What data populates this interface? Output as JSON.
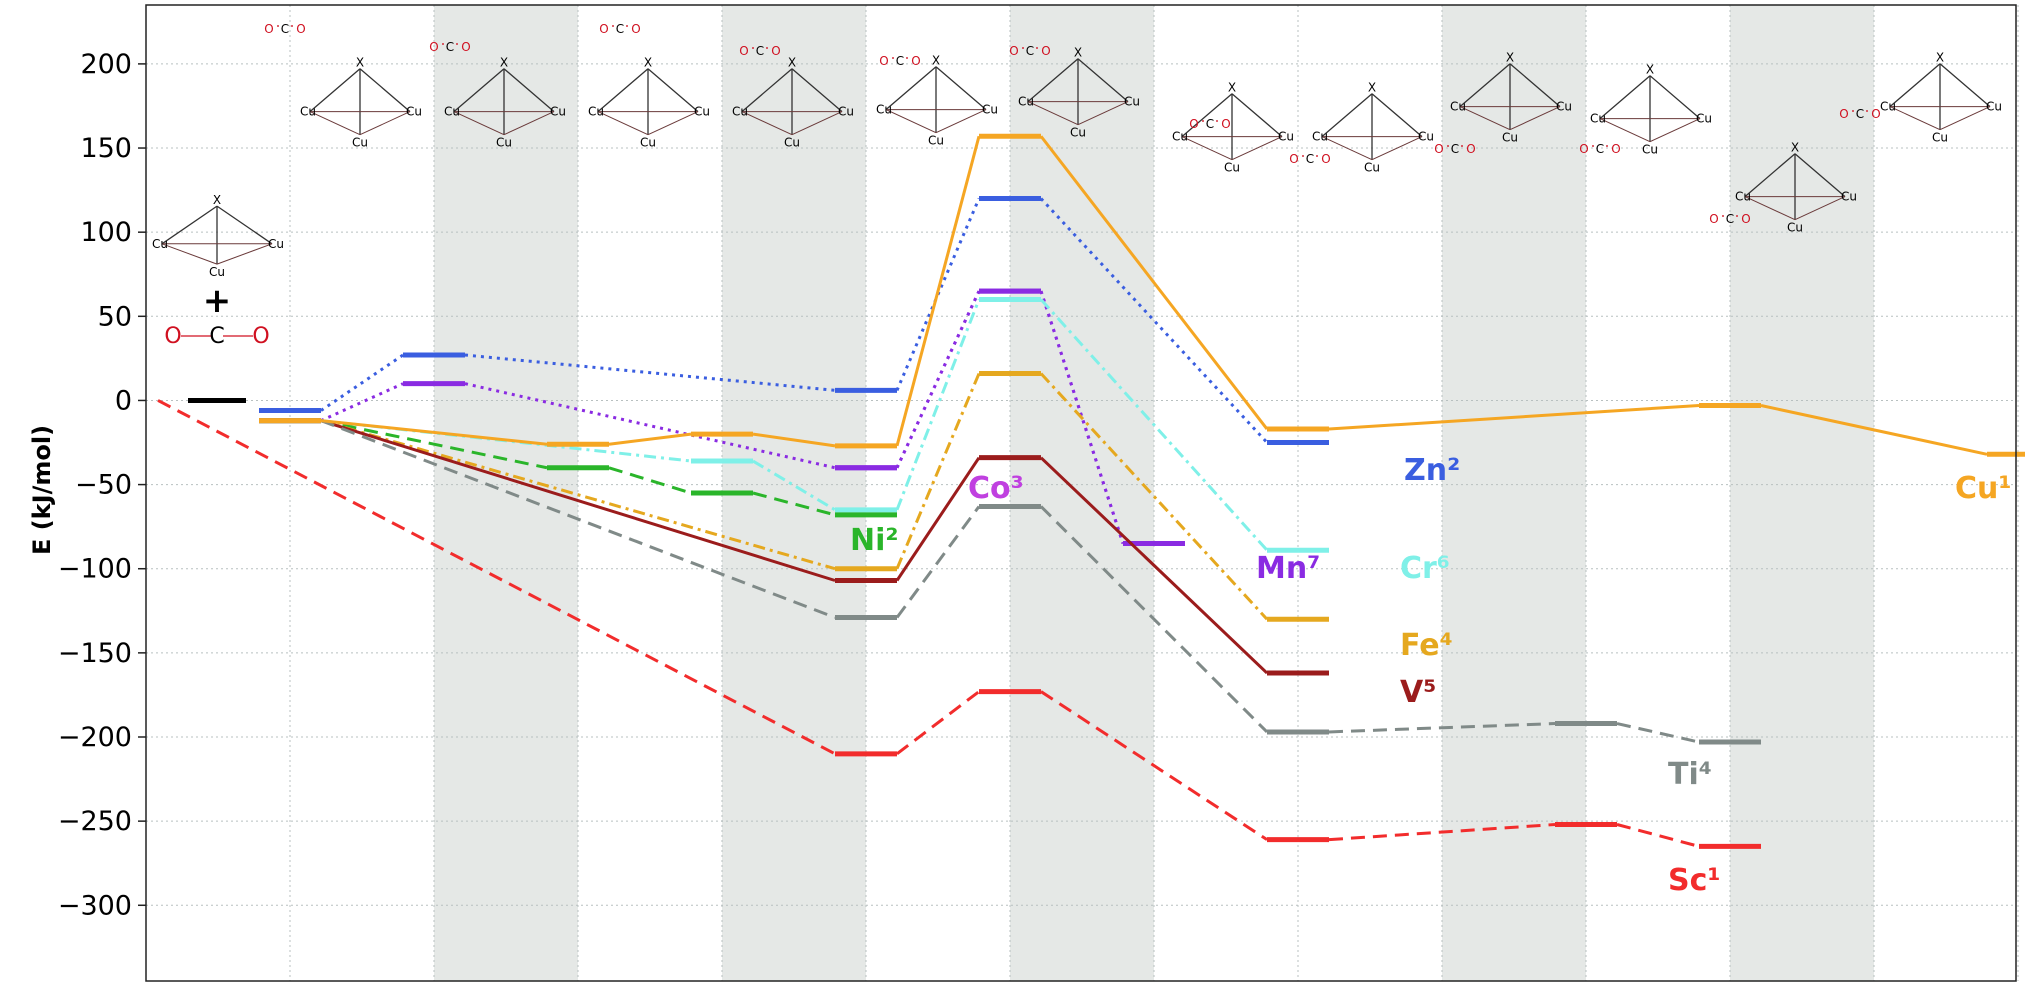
{
  "chart_data": {
    "type": "line",
    "title": "",
    "xlabel": "",
    "ylabel": "E (kJ/mol)",
    "ylim": [
      -345,
      235
    ],
    "yticks": [
      200,
      150,
      100,
      50,
      0,
      -50,
      -100,
      -150,
      -200,
      -250,
      -300
    ],
    "ytick_labels": [
      "200",
      "150",
      "100",
      "50",
      "0",
      "−50",
      "−100",
      "−150",
      "−200",
      "−250",
      "−300"
    ],
    "grid": true,
    "shaded_stage_columns": [
      2,
      4,
      6,
      9,
      11
    ],
    "stages": [
      0,
      1,
      2,
      3,
      4,
      5,
      6,
      7,
      8,
      9,
      10,
      11,
      12
    ],
    "reactant": {
      "stage": 0,
      "value": 0,
      "color": "#000000",
      "plus": "+"
    },
    "series": [
      {
        "name": "Zn²",
        "color": "#3a5ee0",
        "dash": "dotted",
        "points": [
          [
            1,
            -6
          ],
          [
            2,
            27
          ],
          [
            5,
            6
          ],
          [
            6,
            120
          ],
          [
            8,
            -25
          ]
        ]
      },
      {
        "name": "Co³",
        "color": "#8a2be2",
        "dash": "dotted",
        "points": [
          [
            1,
            -12
          ],
          [
            2,
            10
          ],
          [
            5,
            -40
          ],
          [
            6,
            65
          ],
          [
            7,
            -85
          ]
        ]
      },
      {
        "name": "Mn⁷",
        "color": "#8a2be2",
        "dash": "dotted",
        "points": [
          [
            5,
            -40
          ],
          [
            6,
            65
          ],
          [
            7,
            -85
          ]
        ]
      },
      {
        "name": "Cr⁶",
        "color": "#7ff0e8",
        "dash": "dashdot",
        "points": [
          [
            1,
            -12
          ],
          [
            4,
            -36
          ],
          [
            5,
            -65
          ],
          [
            6,
            60
          ],
          [
            8,
            -89
          ]
        ]
      },
      {
        "name": "Ni²",
        "color": "#2ab52a",
        "dash": "dashed",
        "points": [
          [
            1,
            -12
          ],
          [
            3,
            -40
          ],
          [
            4,
            -55
          ],
          [
            5,
            -68
          ]
        ]
      },
      {
        "name": "Fe⁴",
        "color": "#e5a81f",
        "dash": "dashdot",
        "points": [
          [
            1,
            -12
          ],
          [
            5,
            -100
          ],
          [
            6,
            16
          ],
          [
            8,
            -130
          ]
        ]
      },
      {
        "name": "V⁵",
        "color": "#9b1c1c",
        "dash": "solid",
        "points": [
          [
            1,
            -12
          ],
          [
            5,
            -107
          ],
          [
            6,
            -34
          ],
          [
            8,
            -162
          ]
        ]
      },
      {
        "name": "Ti⁴",
        "color": "#808a88",
        "dash": "dashed",
        "points": [
          [
            1,
            -12
          ],
          [
            5,
            -129
          ],
          [
            6,
            -63
          ],
          [
            8,
            -197
          ],
          [
            10,
            -192
          ],
          [
            11,
            -203
          ]
        ]
      },
      {
        "name": "Sc¹",
        "color": "#f22c2c",
        "dash": "dashed",
        "points": [
          [
            0,
            0
          ],
          [
            5,
            -210
          ],
          [
            6,
            -173
          ],
          [
            8,
            -261
          ],
          [
            10,
            -252
          ],
          [
            11,
            -265
          ]
        ]
      },
      {
        "name": "Cu¹",
        "color": "#f5a623",
        "dash": "solid",
        "points": [
          [
            1,
            -12
          ],
          [
            3,
            -26
          ],
          [
            4,
            -20
          ],
          [
            5,
            -27
          ],
          [
            6,
            157
          ],
          [
            8,
            -17
          ],
          [
            11,
            -3
          ],
          [
            13,
            -32
          ]
        ]
      }
    ],
    "labels": [
      "Zn²",
      "Co³",
      "Mn⁷",
      "Cr⁶",
      "Ni²",
      "Fe⁴",
      "V⁵",
      "Ti⁴",
      "Sc¹",
      "Cu¹"
    ],
    "structure_atoms": {
      "cu": "Cu",
      "x": "X",
      "o": "O",
      "c": "C"
    }
  }
}
